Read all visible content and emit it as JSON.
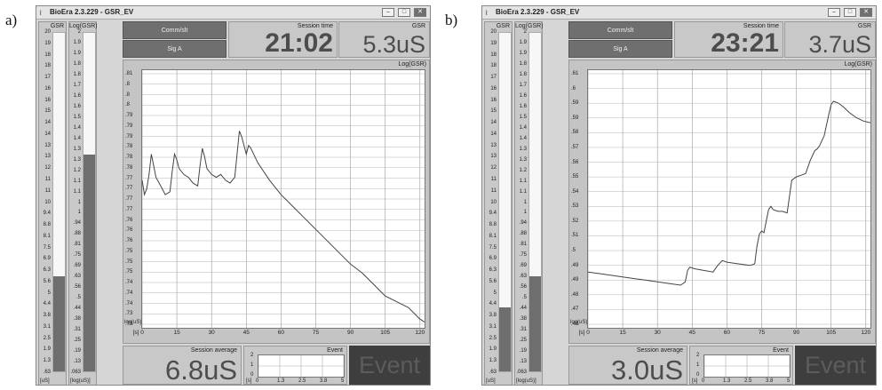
{
  "panels": [
    {
      "label": "a)",
      "window_title": "BioEra 2.3.229 - GSR_EV",
      "gsr_meter": {
        "title": "GSR",
        "ticks": [
          "20",
          "19",
          "18",
          "18",
          "17",
          "16",
          "16",
          "15",
          "14",
          "14",
          "13",
          "13",
          "12",
          "11",
          "11",
          "10",
          "9.4",
          "8.8",
          "8.1",
          "7.5",
          "6.9",
          "6.3",
          "5.6",
          "5",
          "4.4",
          "3.8",
          "3.1",
          "2.5",
          "1.9",
          "1.3",
          ".63"
        ],
        "unit": "[uS]",
        "level": 0.28
      },
      "log_meter": {
        "title": "Log(GSR)",
        "ticks": [
          "2",
          "1.9",
          "1.9",
          "1.8",
          "1.8",
          "1.7",
          "1.6",
          "1.6",
          "1.5",
          "1.4",
          "1.4",
          "1.3",
          "1.3",
          "1.2",
          "1.1",
          "1.1",
          "1",
          "1",
          ".94",
          ".88",
          ".81",
          ".75",
          ".69",
          ".63",
          ".56",
          ".5",
          ".44",
          ".38",
          ".31",
          ".25",
          ".19",
          ".13",
          ".063"
        ],
        "unit": "[log(uS)]",
        "level": 0.64
      },
      "buttons": {
        "comm": "Comm/slt",
        "sig": "Sig A"
      },
      "session_time": {
        "label": "Session time",
        "value": "21:02"
      },
      "gsr_value": {
        "label": "GSR",
        "value": "5.3uS"
      },
      "session_average": {
        "label": "Session average",
        "value": "6.8uS"
      },
      "event": {
        "title": "Event",
        "text": "Event",
        "y_ticks": [
          "2",
          "1",
          "0"
        ],
        "x_unit": "[s]",
        "x_ticks": [
          "0",
          "1.3",
          "2.5",
          "3.8",
          "5"
        ]
      },
      "chart_data": {
        "type": "line",
        "title": "Log(GSR)",
        "ylabel": "log(uS)",
        "x_unit": "[s]",
        "xlim": [
          0,
          122
        ],
        "ylim": [
          0.726,
          0.815
        ],
        "x_ticks": [
          "0",
          "15",
          "30",
          "45",
          "60",
          "75",
          "90",
          "105",
          "120"
        ],
        "y_ticks": [
          ".81",
          ".8",
          ".8",
          ".8",
          ".79",
          ".79",
          ".79",
          ".78",
          ".78",
          ".78",
          ".77",
          ".77",
          ".77",
          ".77",
          ".76",
          ".76",
          ".76",
          ".75",
          ".75",
          ".75",
          ".74",
          ".74",
          ".74",
          ".73",
          ".73"
        ],
        "series": [
          {
            "values": [
              [
                0,
                0.777
              ],
              [
                1,
                0.772
              ],
              [
                2,
                0.774
              ],
              [
                3,
                0.779
              ],
              [
                4,
                0.786
              ],
              [
                5,
                0.782
              ],
              [
                6,
                0.778
              ],
              [
                8,
                0.775
              ],
              [
                10,
                0.772
              ],
              [
                12,
                0.773
              ],
              [
                13,
                0.78
              ],
              [
                14,
                0.786
              ],
              [
                15,
                0.784
              ],
              [
                16,
                0.781
              ],
              [
                18,
                0.779
              ],
              [
                20,
                0.778
              ],
              [
                22,
                0.776
              ],
              [
                24,
                0.775
              ],
              [
                25,
                0.782
              ],
              [
                26,
                0.788
              ],
              [
                27,
                0.785
              ],
              [
                28,
                0.781
              ],
              [
                30,
                0.779
              ],
              [
                32,
                0.778
              ],
              [
                34,
                0.779
              ],
              [
                36,
                0.777
              ],
              [
                38,
                0.776
              ],
              [
                40,
                0.778
              ],
              [
                41,
                0.786
              ],
              [
                42,
                0.794
              ],
              [
                43,
                0.792
              ],
              [
                44,
                0.789
              ],
              [
                45,
                0.786
              ],
              [
                46,
                0.789
              ],
              [
                47,
                0.788
              ],
              [
                50,
                0.783
              ],
              [
                55,
                0.777
              ],
              [
                60,
                0.772
              ],
              [
                65,
                0.768
              ],
              [
                70,
                0.764
              ],
              [
                75,
                0.76
              ],
              [
                80,
                0.756
              ],
              [
                85,
                0.752
              ],
              [
                90,
                0.748
              ],
              [
                95,
                0.745
              ],
              [
                100,
                0.741
              ],
              [
                105,
                0.737
              ],
              [
                110,
                0.735
              ],
              [
                115,
                0.733
              ],
              [
                120,
                0.729
              ],
              [
                122,
                0.728
              ]
            ]
          }
        ]
      }
    },
    {
      "label": "b)",
      "window_title": "BioEra 2.3.229 - GSR_EV",
      "gsr_meter": {
        "title": "GSR",
        "ticks": [
          "20",
          "19",
          "18",
          "18",
          "17",
          "16",
          "16",
          "15",
          "14",
          "14",
          "13",
          "13",
          "12",
          "11",
          "11",
          "10",
          "9.4",
          "8.8",
          "8.1",
          "7.5",
          "6.9",
          "6.3",
          "5.6",
          "5",
          "4.4",
          "3.8",
          "3.1",
          "2.5",
          "1.9",
          "1.3",
          ".63"
        ],
        "unit": "[uS]",
        "level": 0.19
      },
      "log_meter": {
        "title": "Log(GSR)",
        "ticks": [
          "2",
          "1.9",
          "1.9",
          "1.8",
          "1.8",
          "1.7",
          "1.6",
          "1.6",
          "1.5",
          "1.4",
          "1.4",
          "1.3",
          "1.3",
          "1.2",
          "1.1",
          "1.1",
          "1",
          "1",
          ".94",
          ".88",
          ".81",
          ".75",
          ".69",
          ".63",
          ".56",
          ".5",
          ".44",
          ".38",
          ".31",
          ".25",
          ".19",
          ".13",
          ".063"
        ],
        "unit": "[log(uS)]",
        "level": 0.28
      },
      "buttons": {
        "comm": "Comm/slt",
        "sig": "Sig A"
      },
      "session_time": {
        "label": "Session time",
        "value": "23:21"
      },
      "gsr_value": {
        "label": "GSR",
        "value": "3.7uS"
      },
      "session_average": {
        "label": "Session average",
        "value": "3.0uS"
      },
      "event": {
        "title": "Event",
        "text": "Event",
        "y_ticks": [
          "2",
          "1",
          "0"
        ],
        "x_unit": "[s]",
        "x_ticks": [
          "0",
          "1.3",
          "2.5",
          "3.8",
          "5"
        ]
      },
      "chart_data": {
        "type": "line",
        "title": "Log(GSR)",
        "ylabel": "log(uS)",
        "x_unit": "[s]",
        "xlim": [
          0,
          122
        ],
        "ylim": [
          0.455,
          0.612
        ],
        "x_ticks": [
          "0",
          "15",
          "30",
          "45",
          "60",
          "75",
          "90",
          "105",
          "120"
        ],
        "y_ticks": [
          ".61",
          ".6",
          ".59",
          ".59",
          ".58",
          ".57",
          ".56",
          ".55",
          ".54",
          ".53",
          ".52",
          ".51",
          ".5",
          ".49",
          ".49",
          ".48",
          ".47",
          ".46"
        ],
        "series": [
          {
            "values": [
              [
                0,
                0.489
              ],
              [
                5,
                0.488
              ],
              [
                10,
                0.487
              ],
              [
                15,
                0.486
              ],
              [
                20,
                0.485
              ],
              [
                25,
                0.484
              ],
              [
                30,
                0.483
              ],
              [
                35,
                0.482
              ],
              [
                40,
                0.481
              ],
              [
                42,
                0.483
              ],
              [
                43,
                0.49
              ],
              [
                44,
                0.492
              ],
              [
                46,
                0.491
              ],
              [
                50,
                0.49
              ],
              [
                54,
                0.489
              ],
              [
                56,
                0.493
              ],
              [
                58,
                0.496
              ],
              [
                60,
                0.495
              ],
              [
                65,
                0.494
              ],
              [
                70,
                0.493
              ],
              [
                72,
                0.494
              ],
              [
                73,
                0.505
              ],
              [
                74,
                0.512
              ],
              [
                75,
                0.514
              ],
              [
                76,
                0.513
              ],
              [
                77,
                0.52
              ],
              [
                78,
                0.527
              ],
              [
                79,
                0.529
              ],
              [
                80,
                0.527
              ],
              [
                82,
                0.526
              ],
              [
                84,
                0.526
              ],
              [
                86,
                0.525
              ],
              [
                87,
                0.535
              ],
              [
                88,
                0.545
              ],
              [
                90,
                0.547
              ],
              [
                92,
                0.548
              ],
              [
                94,
                0.549
              ],
              [
                96,
                0.557
              ],
              [
                98,
                0.563
              ],
              [
                99,
                0.564
              ],
              [
                100,
                0.566
              ],
              [
                102,
                0.572
              ],
              [
                104,
                0.585
              ],
              [
                105,
                0.591
              ],
              [
                106,
                0.593
              ],
              [
                108,
                0.592
              ],
              [
                110,
                0.59
              ],
              [
                113,
                0.586
              ],
              [
                116,
                0.583
              ],
              [
                119,
                0.581
              ],
              [
                122,
                0.58
              ]
            ]
          }
        ]
      }
    }
  ]
}
